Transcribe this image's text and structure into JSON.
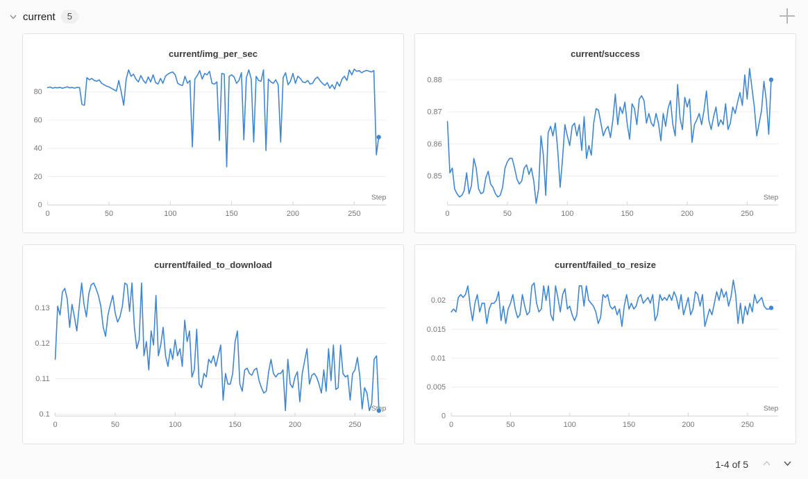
{
  "header": {
    "section_label": "current",
    "panel_count_badge": "5"
  },
  "pagination": {
    "label": "1-4 of 5"
  },
  "colors": {
    "accent_line": "#3e86d1",
    "page_bg": "#fafafa",
    "panel_bg": "#ffffff",
    "panel_border": "#e2e2e2",
    "grid_line": "#ececec",
    "axis_line": "#d2d2d2",
    "tick_label": "#767676",
    "title_text": "#3b3b3b"
  },
  "chart_data": [
    {
      "type": "line",
      "title": "current/img_per_sec",
      "xlabel": "Step",
      "x_start": 0,
      "x_step": 2,
      "xlim": [
        0,
        276
      ],
      "xticks": [
        0,
        50,
        100,
        150,
        200,
        250
      ],
      "ylim": [
        0,
        96.5
      ],
      "ytick_values": [
        0,
        20,
        40,
        60,
        80
      ],
      "ytick_labels": [
        "0",
        "20",
        "40",
        "60",
        "80"
      ],
      "end_marker": true,
      "y": [
        83,
        83.4,
        82.6,
        83,
        82.8,
        83.2,
        82.5,
        83,
        83.5,
        82.8,
        83.1,
        82.6,
        83.2,
        83,
        71,
        70.5,
        90,
        88.5,
        89.5,
        88,
        87.5,
        88.5,
        86,
        85,
        84,
        83.5,
        82.5,
        81.5,
        80.5,
        88,
        80,
        70.5,
        89,
        95.5,
        91,
        92.5,
        89,
        87,
        91.5,
        88,
        86,
        90.5,
        87,
        92,
        86.5,
        85.5,
        89.5,
        86,
        91,
        92.5,
        93.5,
        94,
        92,
        86,
        85,
        84.5,
        91,
        86,
        88,
        41,
        89,
        91.5,
        95,
        89,
        93,
        92,
        94.5,
        86,
        85.5,
        87,
        45.5,
        93,
        92.5,
        27,
        91,
        92,
        90.5,
        86,
        88,
        93.5,
        46,
        90,
        95.5,
        89,
        44.5,
        91,
        88,
        87.5,
        95.5,
        38.5,
        89,
        87,
        86,
        88.5,
        85,
        44.5,
        90,
        93.5,
        85,
        87.5,
        93,
        86,
        91,
        89.5,
        87,
        86.5,
        88,
        85.5,
        86,
        89,
        90.5,
        88,
        86,
        84.5,
        86.5,
        82.5,
        85,
        82,
        87,
        84,
        89,
        91,
        88,
        95.5,
        92,
        96,
        94.5,
        95,
        93.5,
        94.5,
        95.2,
        94.6,
        94,
        95,
        35.5,
        48
      ]
    },
    {
      "type": "line",
      "title": "current/success",
      "xlabel": "Step",
      "x_start": 0,
      "x_step": 2,
      "xlim": [
        0,
        276
      ],
      "xticks": [
        0,
        50,
        100,
        150,
        200,
        250
      ],
      "ylim": [
        0.841,
        0.8835
      ],
      "ytick_values": [
        0.85,
        0.86,
        0.87,
        0.88
      ],
      "ytick_labels": [
        "0.85",
        "0.86",
        "0.87",
        "0.88"
      ],
      "end_marker": true,
      "y": [
        0.867,
        0.851,
        0.8525,
        0.846,
        0.8445,
        0.8435,
        0.844,
        0.8455,
        0.851,
        0.8445,
        0.847,
        0.8555,
        0.8525,
        0.846,
        0.8445,
        0.845,
        0.8495,
        0.8515,
        0.8475,
        0.8465,
        0.8445,
        0.8435,
        0.844,
        0.8465,
        0.8525,
        0.8545,
        0.8555,
        0.8555,
        0.8525,
        0.849,
        0.8475,
        0.8485,
        0.8525,
        0.8535,
        0.8505,
        0.8525,
        0.8485,
        0.8415,
        0.846,
        0.8625,
        0.8565,
        0.844,
        0.8635,
        0.8655,
        0.8625,
        0.8665,
        0.858,
        0.8465,
        0.8555,
        0.866,
        0.8625,
        0.8595,
        0.8655,
        0.8665,
        0.8625,
        0.866,
        0.858,
        0.8685,
        0.8555,
        0.8595,
        0.8565,
        0.8665,
        0.871,
        0.8705,
        0.8665,
        0.8625,
        0.8645,
        0.8655,
        0.862,
        0.8675,
        0.8755,
        0.866,
        0.8715,
        0.8695,
        0.873,
        0.866,
        0.8615,
        0.8725,
        0.871,
        0.866,
        0.874,
        0.875,
        0.8735,
        0.8665,
        0.8695,
        0.8665,
        0.8655,
        0.8695,
        0.8665,
        0.861,
        0.8695,
        0.8655,
        0.871,
        0.8735,
        0.866,
        0.8625,
        0.8785,
        0.868,
        0.8645,
        0.8745,
        0.8715,
        0.874,
        0.8605,
        0.866,
        0.8675,
        0.8695,
        0.866,
        0.8705,
        0.8765,
        0.8675,
        0.8645,
        0.8685,
        0.8715,
        0.8655,
        0.8675,
        0.866,
        0.8725,
        0.8645,
        0.8665,
        0.8715,
        0.8695,
        0.873,
        0.876,
        0.872,
        0.8815,
        0.874,
        0.8835,
        0.8775,
        0.8715,
        0.8625,
        0.8665,
        0.8705,
        0.8795,
        0.8735,
        0.863,
        0.88
      ]
    },
    {
      "type": "line",
      "title": "current/failed_to_download",
      "xlabel": "Step",
      "x_start": 0,
      "x_step": 2,
      "xlim": [
        0,
        276
      ],
      "xticks": [
        0,
        50,
        100,
        150,
        200,
        250
      ],
      "ylim": [
        0.0995,
        0.138
      ],
      "ytick_values": [
        0.1,
        0.11,
        0.12,
        0.13
      ],
      "ytick_labels": [
        "0.1",
        "0.11",
        "0.12",
        "0.13"
      ],
      "end_marker": true,
      "y": [
        0.1155,
        0.1305,
        0.128,
        0.1345,
        0.1355,
        0.1325,
        0.1245,
        0.131,
        0.1275,
        0.1235,
        0.1305,
        0.137,
        0.131,
        0.1275,
        0.134,
        0.1365,
        0.137,
        0.1355,
        0.1335,
        0.1305,
        0.1245,
        0.122,
        0.128,
        0.131,
        0.1335,
        0.1285,
        0.126,
        0.1275,
        0.1305,
        0.137,
        0.1365,
        0.129,
        0.137,
        0.1245,
        0.1185,
        0.121,
        0.137,
        0.1165,
        0.1205,
        0.1125,
        0.1235,
        0.1195,
        0.1335,
        0.1165,
        0.1195,
        0.1245,
        0.1165,
        0.1135,
        0.1185,
        0.1155,
        0.121,
        0.1165,
        0.1185,
        0.1135,
        0.1265,
        0.1205,
        0.1235,
        0.1105,
        0.1125,
        0.124,
        0.1085,
        0.1075,
        0.1115,
        0.1105,
        0.1155,
        0.1145,
        0.1165,
        0.1135,
        0.1165,
        0.1195,
        0.104,
        0.1115,
        0.1085,
        0.1085,
        0.1115,
        0.1205,
        0.1235,
        0.1085,
        0.1065,
        0.1125,
        0.113,
        0.1115,
        0.111,
        0.1125,
        0.113,
        0.1095,
        0.1075,
        0.106,
        0.1065,
        0.112,
        0.1155,
        0.1115,
        0.1105,
        0.1115,
        0.1115,
        0.1125,
        0.101,
        0.1155,
        0.1085,
        0.1075,
        0.1105,
        0.112,
        0.1035,
        0.1115,
        0.115,
        0.1185,
        0.1085,
        0.111,
        0.1115,
        0.1105,
        0.1085,
        0.106,
        0.1125,
        0.1065,
        0.1185,
        0.1095,
        0.1195,
        0.107,
        0.1075,
        0.1195,
        0.1115,
        0.1105,
        0.111,
        0.104,
        0.1115,
        0.1125,
        0.116,
        0.111,
        0.1015,
        0.1075,
        0.106,
        0.101,
        0.103,
        0.1155,
        0.1165,
        0.101
      ]
    },
    {
      "type": "line",
      "title": "current/failed_to_resize",
      "xlabel": "Step",
      "x_start": 0,
      "x_step": 2,
      "xlim": [
        0,
        276
      ],
      "xticks": [
        0,
        50,
        100,
        150,
        200,
        250
      ],
      "ylim": [
        0,
        0.0236
      ],
      "ytick_values": [
        0,
        0.005,
        0.01,
        0.015,
        0.02
      ],
      "ytick_labels": [
        "0",
        "0.005",
        "0.01",
        "0.015",
        "0.02"
      ],
      "end_marker": true,
      "y": [
        0.018,
        0.0185,
        0.018,
        0.0205,
        0.021,
        0.0205,
        0.021,
        0.0225,
        0.019,
        0.0165,
        0.0195,
        0.021,
        0.018,
        0.0195,
        0.0195,
        0.016,
        0.0185,
        0.0195,
        0.0195,
        0.02,
        0.0215,
        0.0165,
        0.019,
        0.016,
        0.0185,
        0.0195,
        0.021,
        0.0185,
        0.017,
        0.0175,
        0.021,
        0.019,
        0.0175,
        0.018,
        0.0225,
        0.023,
        0.0195,
        0.018,
        0.0185,
        0.0225,
        0.02,
        0.0225,
        0.0175,
        0.0165,
        0.0225,
        0.0205,
        0.018,
        0.021,
        0.022,
        0.0185,
        0.019,
        0.0175,
        0.0165,
        0.0175,
        0.0225,
        0.0225,
        0.019,
        0.0225,
        0.02,
        0.0195,
        0.019,
        0.018,
        0.016,
        0.017,
        0.021,
        0.0205,
        0.021,
        0.019,
        0.0185,
        0.019,
        0.0175,
        0.0185,
        0.0155,
        0.019,
        0.021,
        0.0185,
        0.0195,
        0.0185,
        0.019,
        0.0205,
        0.021,
        0.0195,
        0.02,
        0.0205,
        0.0195,
        0.021,
        0.0165,
        0.0175,
        0.021,
        0.02,
        0.0205,
        0.02,
        0.021,
        0.02,
        0.0215,
        0.0205,
        0.0185,
        0.021,
        0.0175,
        0.019,
        0.0205,
        0.0175,
        0.0185,
        0.0215,
        0.021,
        0.019,
        0.021,
        0.0155,
        0.017,
        0.0185,
        0.0175,
        0.0195,
        0.0215,
        0.02,
        0.022,
        0.0205,
        0.0215,
        0.019,
        0.0205,
        0.0235,
        0.021,
        0.016,
        0.0195,
        0.016,
        0.019,
        0.0175,
        0.0195,
        0.018,
        0.021,
        0.0195,
        0.02,
        0.0205,
        0.019,
        0.0185,
        0.0185,
        0.0187
      ]
    }
  ]
}
